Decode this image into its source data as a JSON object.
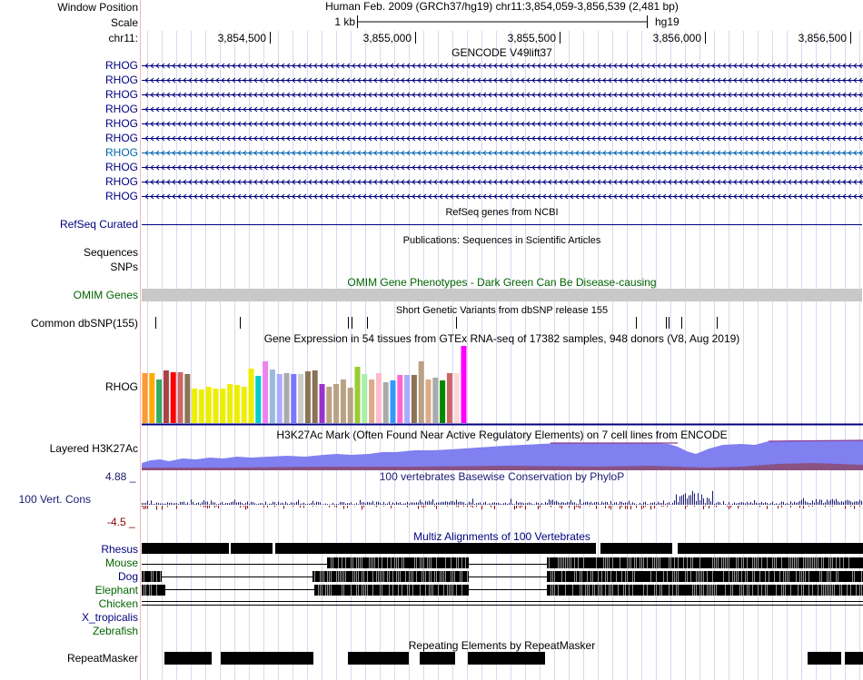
{
  "header": {
    "window_position_label": "Window Position",
    "scale_label": "Scale",
    "chrom_label": "chr11:",
    "assembly_position": "Human Feb. 2009 (GRCh37/hg19)   chr11:3,854,059-3,856,539 (2,481 bp)",
    "scale_value": "1 kb",
    "db": "hg19",
    "ticks": [
      "3,854,500",
      "3,855,000",
      "3,855,500",
      "3,856,000",
      "3,856,500"
    ]
  },
  "gencode": {
    "title": "GENCODE V49lift37",
    "genes": [
      "RHOG",
      "RHOG",
      "RHOG",
      "RHOG",
      "RHOG",
      "RHOG",
      "RHOG",
      "RHOG",
      "RHOG",
      "RHOG"
    ],
    "highlight_index": 6
  },
  "refseq": {
    "label": "RefSeq Curated",
    "title": "RefSeq genes from NCBI"
  },
  "publications": {
    "title": "Publications: Sequences in Scientific Articles",
    "label1": "Sequences",
    "label2": "SNPs"
  },
  "omim": {
    "label": "OMIM Genes",
    "title": "OMIM Gene Phenotypes - Dark Green Can Be Disease-causing"
  },
  "dbsnp": {
    "label": "Common dbSNP(155)",
    "title": "Short Genetic Variants from dbSNP release 155"
  },
  "gtex": {
    "title": "Gene Expression in 54 tissues from GTEx RNA-seq of 17382 samples, 948 donors (V8, Aug 2019)",
    "label": "RHOG",
    "bars": [
      {
        "v": 0.65,
        "c": "#FF9933"
      },
      {
        "v": 0.65,
        "c": "#FFAA00"
      },
      {
        "v": 0.57,
        "c": "#33AA66"
      },
      {
        "v": 0.68,
        "c": "#AA4444"
      },
      {
        "v": 0.66,
        "c": "#FF0000"
      },
      {
        "v": 0.66,
        "c": "#CC6666"
      },
      {
        "v": 0.63,
        "c": "#8B7355"
      },
      {
        "v": 0.45,
        "c": "#EEEE00"
      },
      {
        "v": 0.44,
        "c": "#EEEE00"
      },
      {
        "v": 0.47,
        "c": "#EEEE00"
      },
      {
        "v": 0.45,
        "c": "#EEEE00"
      },
      {
        "v": 0.45,
        "c": "#EEEE00"
      },
      {
        "v": 0.51,
        "c": "#EEEE00"
      },
      {
        "v": 0.49,
        "c": "#EEEE00"
      },
      {
        "v": 0.47,
        "c": "#EEEE00"
      },
      {
        "v": 0.71,
        "c": "#EEEE00"
      },
      {
        "v": 0.61,
        "c": "#00CCCC"
      },
      {
        "v": 0.8,
        "c": "#EE82EE"
      },
      {
        "v": 0.69,
        "c": "#99BBDD"
      },
      {
        "v": 0.63,
        "c": "#AAAAFF"
      },
      {
        "v": 0.65,
        "c": "#AAAAAA"
      },
      {
        "v": 0.63,
        "c": "#7777FF"
      },
      {
        "v": 0.64,
        "c": "#CCCCCC"
      },
      {
        "v": 0.67,
        "c": "#8B7355"
      },
      {
        "v": 0.68,
        "c": "#8B7355"
      },
      {
        "v": 0.5,
        "c": "#9933CC"
      },
      {
        "v": 0.47,
        "c": "#B9A184"
      },
      {
        "v": 0.51,
        "c": "#B9A184"
      },
      {
        "v": 0.56,
        "c": "#B9A184"
      },
      {
        "v": 0.46,
        "c": "#B9A184"
      },
      {
        "v": 0.73,
        "c": "#99CC33"
      },
      {
        "v": 0.64,
        "c": "#AAEEAA"
      },
      {
        "v": 0.56,
        "c": "#DDAA88"
      },
      {
        "v": 0.65,
        "c": "#FFBBCC"
      },
      {
        "v": 0.53,
        "c": "#AAAAAA"
      },
      {
        "v": 0.55,
        "c": "#3399FF"
      },
      {
        "v": 0.62,
        "c": "#FF66CC"
      },
      {
        "v": 0.62,
        "c": "#AAAAFF"
      },
      {
        "v": 0.62,
        "c": "#8B7355"
      },
      {
        "v": 0.8,
        "c": "#B9A184"
      },
      {
        "v": 0.56,
        "c": "#DDAA88"
      },
      {
        "v": 0.59,
        "c": "#AAAAAA"
      },
      {
        "v": 0.55,
        "c": "#008800"
      },
      {
        "v": 0.65,
        "c": "#CC6666"
      },
      {
        "v": 0.65,
        "c": "#FFD7D7"
      },
      {
        "v": 1.0,
        "c": "#FF00FF"
      }
    ]
  },
  "h3k27ac": {
    "label": "Layered H3K27Ac",
    "title": "H3K27Ac Mark (Often Found Near Active Regulatory Elements) on 7 cell lines from ENCODE"
  },
  "phylop": {
    "label": "100 Vert. Cons",
    "max": "4.88 _",
    "min": "-4.5 _",
    "title": "100 vertebrates Basewise Conservation by PhyloP"
  },
  "multiz": {
    "title": "Multiz Alignments of 100 Vertebrates",
    "species": [
      {
        "name": "Rhesus",
        "color": "#000080"
      },
      {
        "name": "Mouse",
        "color": "#006400"
      },
      {
        "name": "Dog",
        "color": "#000080"
      },
      {
        "name": "Elephant",
        "color": "#006400"
      },
      {
        "name": "Chicken",
        "color": "#006400"
      },
      {
        "name": "X_tropicalis",
        "color": "#000080"
      },
      {
        "name": "Zebrafish",
        "color": "#006400"
      }
    ]
  },
  "repeatmasker": {
    "label": "RepeatMasker",
    "title": "Repeating Elements by RepeatMasker"
  },
  "colors": {
    "navy": "#000080",
    "rhog_highlight": "#0066AA",
    "omim_bar": "#C8C8C8",
    "h3k27ac_fill": "#8080F0",
    "phylop": "#191970",
    "phylop_neg": "#8B0000",
    "divider": "#000080"
  }
}
